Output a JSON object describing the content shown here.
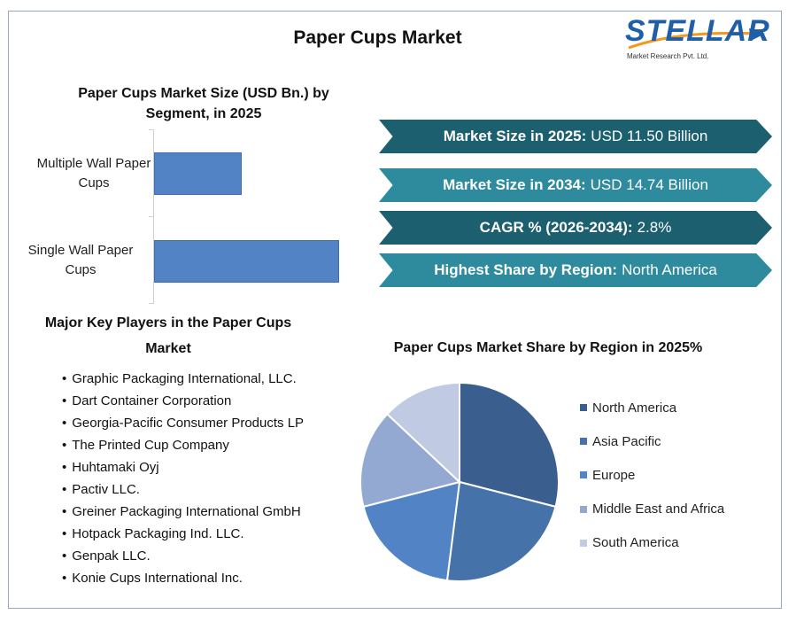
{
  "title": "Paper Cups Market",
  "logo": {
    "name": "STELLAR",
    "tagline": "Market Research Pvt. Ltd."
  },
  "colors": {
    "bar": "#5283c4",
    "banner_dark": "#1c5f6e",
    "banner_light": "#2e8b9e",
    "pie": [
      "#3a5f8f",
      "#4672aa",
      "#5283c4",
      "#93a9d2",
      "#c0cbe3"
    ]
  },
  "banners": [
    {
      "label": "Market Size in 2025:",
      "value": "USD 11.50 Billion"
    },
    {
      "label": "Market Size in 2034:",
      "value": "USD 14.74 Billion"
    },
    {
      "label": "CAGR % (2026-2034):",
      "value": "2.8%"
    },
    {
      "label": "Highest Share by Region:",
      "value": "North America"
    }
  ],
  "players": {
    "title": "Major Key Players in the Paper Cups Market",
    "items": [
      "Graphic Packaging International, LLC.",
      "Dart Container Corporation",
      "Georgia-Pacific Consumer Products LP",
      "The Printed Cup Company",
      "Huhtamaki Oyj",
      "Pactiv LLC.",
      "Greiner Packaging International GmbH",
      "Hotpack Packaging Ind. LLC.",
      "Genpak LLC.",
      "Konie Cups International Inc."
    ]
  },
  "chart_data": [
    {
      "type": "bar",
      "orientation": "horizontal",
      "title": "Paper Cups Market Size (USD Bn.) by Segment, in 2025",
      "categories": [
        "Multiple Wall Paper Cups",
        "Single Wall Paper Cups"
      ],
      "values": [
        3.7,
        7.8
      ],
      "xlim": [
        0,
        7.8
      ],
      "grid": false
    },
    {
      "type": "pie",
      "title": "Paper Cups Market Share by Region in 2025%",
      "labels": [
        "North America",
        "Asia Pacific",
        "Europe",
        "Middle East and Africa",
        "South America"
      ],
      "values": [
        29,
        23,
        19,
        16,
        13
      ],
      "legend": "right"
    }
  ]
}
